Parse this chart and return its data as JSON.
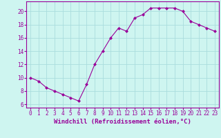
{
  "x": [
    0,
    1,
    2,
    3,
    4,
    5,
    6,
    7,
    8,
    9,
    10,
    11,
    12,
    13,
    14,
    15,
    16,
    17,
    18,
    19,
    20,
    21,
    22,
    23
  ],
  "y": [
    10.0,
    9.5,
    8.5,
    8.0,
    7.5,
    7.0,
    6.5,
    9.0,
    12.0,
    14.0,
    16.0,
    17.5,
    17.0,
    19.0,
    19.5,
    20.5,
    20.5,
    20.5,
    20.5,
    20.0,
    18.5,
    18.0,
    17.5,
    17.0
  ],
  "line_color": "#990099",
  "marker": "D",
  "marker_size": 2,
  "bg_color": "#cef5f0",
  "grid_color": "#aadddd",
  "xlabel": "Windchill (Refroidissement éolien,°C)",
  "ylabel": "",
  "ylim": [
    5.5,
    21.5
  ],
  "yticks": [
    6,
    8,
    10,
    12,
    14,
    16,
    18,
    20
  ],
  "xticks": [
    0,
    1,
    2,
    3,
    4,
    5,
    6,
    7,
    8,
    9,
    10,
    11,
    12,
    13,
    14,
    15,
    16,
    17,
    18,
    19,
    20,
    21,
    22,
    23
  ],
  "xlabel_color": "#990099",
  "tick_color": "#990099",
  "label_fontsize": 6.5,
  "tick_fontsize": 5.5
}
